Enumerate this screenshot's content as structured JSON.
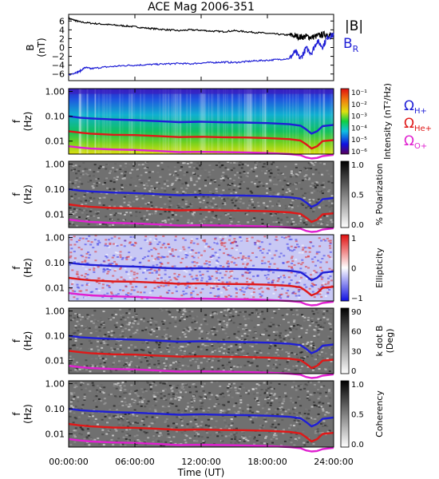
{
  "title": "ACE Mag 2006-351",
  "x_axis": {
    "label": "Time (UT)",
    "ticks": [
      "00:00:00",
      "06:00:00",
      "12:00:00",
      "18:00:00",
      "24:00:00"
    ],
    "range_hours": [
      0,
      24
    ]
  },
  "freq_axis": {
    "label_lines": [
      "f",
      "(Hz)"
    ],
    "ticks": [
      "1.00",
      "0.10",
      "0.01"
    ],
    "tick_values": [
      1.0,
      0.1,
      0.01
    ],
    "scale": "log",
    "range": [
      0.003,
      1.3
    ]
  },
  "panels": [
    {
      "key": "field",
      "colorbar_label": ""
    },
    {
      "key": "intensity",
      "colorbar_label": "Intensity (nT²/Hz)",
      "colorbar_ticks": [
        "10⁻¹",
        "10⁻²",
        "10⁻³",
        "10⁻⁴",
        "10⁻⁵",
        "10⁻⁶"
      ],
      "colormap": "rainbow"
    },
    {
      "key": "polarization",
      "colorbar_label": "% Polarization",
      "colorbar_ticks": [
        "1.0",
        "0.5",
        "0.0"
      ],
      "colormap": "gray"
    },
    {
      "key": "ellipticity",
      "colorbar_label": "Ellipticity",
      "colorbar_ticks": [
        "1",
        "0",
        "−1"
      ],
      "colormap": "bluewhitered"
    },
    {
      "key": "kdotb",
      "colorbar_label_lines": [
        "k dot B",
        "(Deg)"
      ],
      "colorbar_ticks": [
        "90",
        "60",
        "30",
        "0"
      ],
      "colormap": "gray"
    },
    {
      "key": "coherency",
      "colorbar_label": "Coherency",
      "colorbar_ticks": [
        "1.0",
        "0.5",
        "0.0"
      ],
      "colormap": "gray"
    }
  ],
  "gyro_legend": [
    {
      "label": "Ω",
      "sub": "H+",
      "color": "#1f1fd6"
    },
    {
      "label": "Ω",
      "sub": "He+",
      "color": "#e01818"
    },
    {
      "label": "Ω",
      "sub": "O+",
      "color": "#e020d0"
    }
  ],
  "chart_data": [
    {
      "type": "line",
      "title": "ACE Mag 2006-351",
      "ylabel_lines": [
        "B",
        "(nT)"
      ],
      "yticks": [
        "6",
        "4",
        "2",
        "0",
        "−2",
        "−4",
        "−6"
      ],
      "ylim": [
        -7.5,
        7.5
      ],
      "xlabel": "Time (UT)",
      "series": [
        {
          "name": "|B|",
          "color": "#000000",
          "x": [
            0,
            0.5,
            1,
            2,
            3,
            4,
            5,
            6,
            7,
            8,
            9,
            10,
            11,
            12,
            13,
            14,
            15,
            16,
            17,
            18,
            19,
            20,
            20.5,
            21,
            21.5,
            22,
            22.5,
            23,
            23.5,
            24
          ],
          "y": [
            6.6,
            6.2,
            5.8,
            5.5,
            5.3,
            5.1,
            4.9,
            4.7,
            4.4,
            4.2,
            4.0,
            3.8,
            4.0,
            3.9,
            3.7,
            3.6,
            3.8,
            3.6,
            3.4,
            3.2,
            3.0,
            2.8,
            2.6,
            2.4,
            2.5,
            2.3,
            2.6,
            2.9,
            3.0,
            2.5
          ]
        },
        {
          "name": "Bᵣ",
          "color": "#1f1fd6",
          "x": [
            0,
            0.5,
            1,
            1.5,
            2,
            3,
            4,
            5,
            6,
            7,
            8,
            9,
            10,
            11,
            12,
            13,
            14,
            15,
            16,
            17,
            18,
            19,
            20,
            20.5,
            21,
            21.5,
            22,
            22.5,
            23,
            23.5,
            24
          ],
          "y": [
            -6.2,
            -5.8,
            -5.4,
            -4.5,
            -4.8,
            -4.5,
            -4.3,
            -4.1,
            -4.0,
            -3.9,
            -3.8,
            -3.7,
            -3.6,
            -3.7,
            -3.5,
            -3.4,
            -3.3,
            -3.4,
            -3.2,
            -3.0,
            -2.9,
            -2.7,
            -2.5,
            -1.0,
            -2.5,
            -0.2,
            -1.2,
            1.5,
            0.2,
            2.5,
            2.8
          ]
        }
      ]
    },
    {
      "type": "line",
      "description_key": "ion gyrofrequency overlay (same on spectrogram panels)",
      "ylabel_lines": [
        "f",
        "(Hz)"
      ],
      "yscale": "log",
      "series": [
        {
          "name": "ΩH+",
          "color": "#1f1fd6",
          "x": [
            0,
            1,
            2,
            4,
            6,
            8,
            10,
            12,
            14,
            16,
            18,
            20,
            21,
            21.5,
            22,
            22.5,
            23,
            24
          ],
          "y": [
            0.1,
            0.088,
            0.082,
            0.074,
            0.07,
            0.064,
            0.058,
            0.06,
            0.057,
            0.056,
            0.053,
            0.048,
            0.042,
            0.03,
            0.02,
            0.025,
            0.04,
            0.045
          ]
        },
        {
          "name": "ΩHe+",
          "color": "#e01818",
          "x": [
            0,
            1,
            2,
            4,
            6,
            8,
            10,
            12,
            14,
            16,
            18,
            20,
            21,
            21.5,
            22,
            22.5,
            23,
            24
          ],
          "y": [
            0.025,
            0.022,
            0.02,
            0.018,
            0.0175,
            0.016,
            0.0145,
            0.015,
            0.0143,
            0.014,
            0.0133,
            0.012,
            0.0105,
            0.0075,
            0.005,
            0.0062,
            0.01,
            0.011
          ]
        },
        {
          "name": "ΩO+",
          "color": "#e020d0",
          "x": [
            0,
            1,
            2,
            4,
            6,
            8,
            10,
            12,
            14,
            16,
            18,
            20,
            21,
            21.5,
            22,
            22.5,
            23,
            24
          ],
          "y": [
            0.0062,
            0.0055,
            0.005,
            0.0046,
            0.0044,
            0.004,
            0.0036,
            0.0037,
            0.0036,
            0.0035,
            0.0033,
            0.003,
            0.0027,
            0.0022,
            0.002,
            0.0021,
            0.0025,
            0.0028
          ]
        }
      ]
    }
  ]
}
